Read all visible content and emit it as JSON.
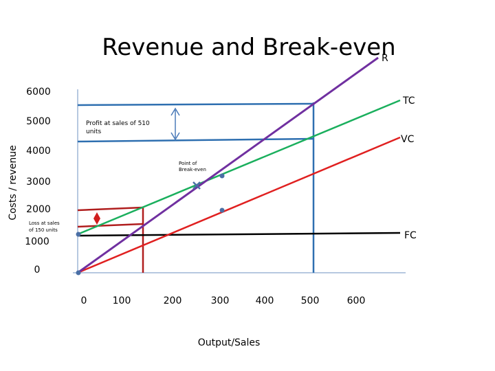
{
  "chart_data": {
    "type": "line",
    "title": "Revenue and Break-even",
    "xlabel": "Output/Sales",
    "ylabel": "Costs / revenue",
    "x_ticks": [
      "0",
      "100",
      "200",
      "300",
      "400",
      "500",
      "600"
    ],
    "y_ticks": [
      "0",
      "1000",
      "2000",
      "3000",
      "4000",
      "5000",
      "6000"
    ],
    "xlim": [
      0,
      600
    ],
    "ylim": [
      0,
      6000
    ],
    "series": [
      {
        "name": "R",
        "color": "#7030a0",
        "points": [
          [
            0,
            0
          ],
          [
            600,
            6800
          ]
        ]
      },
      {
        "name": "TC",
        "color": "#1aaf5d",
        "points": [
          [
            0,
            1300
          ],
          [
            600,
            5700
          ]
        ]
      },
      {
        "name": "VC",
        "color": "#e02020",
        "points": [
          [
            0,
            0
          ],
          [
            600,
            5000
          ]
        ]
      },
      {
        "name": "FC",
        "color": "#000000",
        "points": [
          [
            0,
            1300
          ],
          [
            600,
            1350
          ]
        ]
      }
    ],
    "markers": [
      {
        "x": 0,
        "y": 0
      },
      {
        "x": 0,
        "y": 1300
      },
      {
        "x": 285,
        "y": 3350
      },
      {
        "x": 300,
        "y": 3500
      },
      {
        "x": 300,
        "y": 2200
      }
    ],
    "annotations": {
      "profit": "Profit at sales of 510 units",
      "breakeven": "Point of Break-even",
      "loss": "Loss at sales of 150 units"
    },
    "guides": {
      "profit_sales": 510,
      "profit_revenue": 5600,
      "profit_cost": 4400,
      "loss_sales": 150,
      "loss_cost": 2200,
      "loss_revenue": 1500
    },
    "colors": {
      "revenue": "#7030a0",
      "total_cost": "#1aaf5d",
      "variable_cost": "#e02020",
      "fixed_cost": "#000000",
      "guide_blue": "#2e6fb0",
      "guide_red": "#b01e1e",
      "axis": "#9db5d6",
      "marker": "#4a6fa5"
    }
  }
}
